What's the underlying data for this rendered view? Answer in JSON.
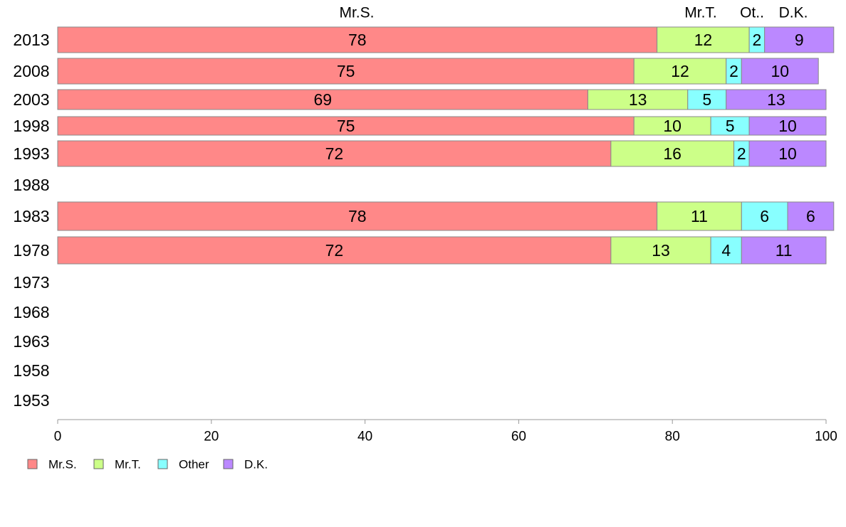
{
  "chart_data": {
    "type": "bar",
    "orientation": "horizontal",
    "stacked": true,
    "categories": [
      "2013",
      "2008",
      "2003",
      "1998",
      "1993",
      "1988",
      "1983",
      "1978",
      "1973",
      "1968",
      "1963",
      "1958",
      "1953"
    ],
    "series": [
      {
        "name": "Mr.S.",
        "color": "#ff8888",
        "values": [
          78,
          75,
          69,
          75,
          72,
          null,
          78,
          72,
          null,
          null,
          null,
          null,
          null
        ]
      },
      {
        "name": "Mr.T.",
        "color": "#ccff88",
        "values": [
          12,
          12,
          13,
          10,
          16,
          null,
          11,
          13,
          null,
          null,
          null,
          null,
          null
        ]
      },
      {
        "name": "Other",
        "color": "#88ffff",
        "values": [
          2,
          2,
          5,
          5,
          2,
          null,
          6,
          4,
          null,
          null,
          null,
          null,
          null
        ]
      },
      {
        "name": "D.K.",
        "color": "#bb88ff",
        "values": [
          9,
          10,
          13,
          10,
          10,
          null,
          6,
          11,
          null,
          null,
          null,
          null,
          null
        ]
      }
    ],
    "top_labels": [
      "Mr.S.",
      "Mr.T.",
      "Ot..",
      "D.K."
    ],
    "xlim": [
      0,
      100
    ],
    "xticks": [
      "0",
      "20",
      "40",
      "60",
      "80",
      "100"
    ],
    "grid": false,
    "legend": {
      "position": "bottom-left",
      "entries": [
        "Mr.S.",
        "Mr.T.",
        "Other",
        "D.K."
      ]
    },
    "title": "",
    "xlabel": "",
    "ylabel": ""
  }
}
